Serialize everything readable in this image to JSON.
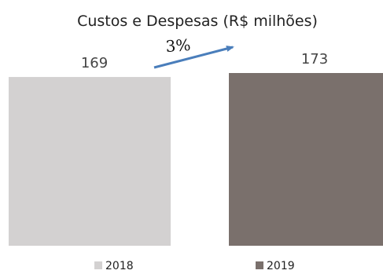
{
  "chart_data": {
    "type": "bar",
    "title": "Custos e Despesas (R$ milhões)",
    "xlabel": "",
    "ylabel": "",
    "categories": [
      "2018",
      "2019"
    ],
    "values": [
      169,
      173
    ],
    "ylim": [
      0,
      173
    ],
    "bar_colors": [
      "#d3d1d1",
      "#7a706c"
    ],
    "legend_position": "bottom",
    "grid": false,
    "annotation": {
      "text": "3%",
      "arrow_color": "#4a7ebb",
      "from": "2018",
      "to": "2019"
    }
  }
}
